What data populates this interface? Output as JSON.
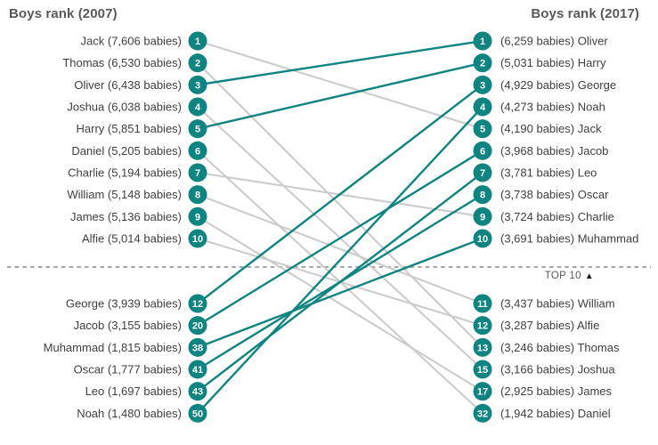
{
  "chart_data": {
    "type": "line",
    "variant": "slopegraph",
    "title_left": "Boys rank (2007)",
    "title_right": "Boys rank (2017)",
    "separator_label": "TOP 10",
    "separator_arrow": "▲",
    "unit": "babies",
    "colors": {
      "rising_line": "#0f8480",
      "falling_line": "#cccccc",
      "node_fill": "#0f8480",
      "node_text": "#ffffff",
      "label_text": "#3f3f3f",
      "header_text": "#595959",
      "separator": "#a6a6a6",
      "arrow": "#1a1a1a"
    },
    "entries": [
      {
        "name": "Jack",
        "rank_2007": 1,
        "babies_2007": 7606,
        "label_2007": "Jack (7,606 babies)",
        "rank_2017": 5,
        "babies_2017": 4190,
        "label_2017": "(4,190 babies) Jack",
        "trend": "down"
      },
      {
        "name": "Thomas",
        "rank_2007": 2,
        "babies_2007": 6530,
        "label_2007": "Thomas (6,530 babies)",
        "rank_2017": 13,
        "babies_2017": 3246,
        "label_2017": "(3,246 babies) Thomas",
        "trend": "down"
      },
      {
        "name": "Oliver",
        "rank_2007": 3,
        "babies_2007": 6438,
        "label_2007": "Oliver (6,438 babies)",
        "rank_2017": 1,
        "babies_2017": 6259,
        "label_2017": "(6,259 babies) Oliver",
        "trend": "up"
      },
      {
        "name": "Joshua",
        "rank_2007": 4,
        "babies_2007": 6038,
        "label_2007": "Joshua (6,038 babies)",
        "rank_2017": 15,
        "babies_2017": 3166,
        "label_2017": "(3,166 babies) Joshua",
        "trend": "down"
      },
      {
        "name": "Harry",
        "rank_2007": 5,
        "babies_2007": 5851,
        "label_2007": "Harry (5,851 babies)",
        "rank_2017": 2,
        "babies_2017": 5031,
        "label_2017": "(5,031 babies) Harry",
        "trend": "up"
      },
      {
        "name": "Daniel",
        "rank_2007": 6,
        "babies_2007": 5205,
        "label_2007": "Daniel (5,205 babies)",
        "rank_2017": 32,
        "babies_2017": 1942,
        "label_2017": "(1,942 babies) Daniel",
        "trend": "down"
      },
      {
        "name": "Charlie",
        "rank_2007": 7,
        "babies_2007": 5194,
        "label_2007": "Charlie (5,194 babies)",
        "rank_2017": 9,
        "babies_2017": 3724,
        "label_2017": "(3,724 babies) Charlie",
        "trend": "down"
      },
      {
        "name": "William",
        "rank_2007": 8,
        "babies_2007": 5148,
        "label_2007": "William (5,148 babies)",
        "rank_2017": 11,
        "babies_2017": 3437,
        "label_2017": "(3,437 babies) William",
        "trend": "down"
      },
      {
        "name": "James",
        "rank_2007": 9,
        "babies_2007": 5136,
        "label_2007": "James (5,136 babies)",
        "rank_2017": 17,
        "babies_2017": 2925,
        "label_2017": "(2,925 babies) James",
        "trend": "down"
      },
      {
        "name": "Alfie",
        "rank_2007": 10,
        "babies_2007": 5014,
        "label_2007": "Alfie (5,014 babies)",
        "rank_2017": 12,
        "babies_2017": 3287,
        "label_2017": "(3,287 babies) Alfie",
        "trend": "down"
      },
      {
        "name": "George",
        "rank_2007": 12,
        "babies_2007": 3939,
        "label_2007": "George (3,939 babies)",
        "rank_2017": 3,
        "babies_2017": 4929,
        "label_2017": "(4,929 babies) George",
        "trend": "up"
      },
      {
        "name": "Jacob",
        "rank_2007": 20,
        "babies_2007": 3155,
        "label_2007": "Jacob (3,155 babies)",
        "rank_2017": 6,
        "babies_2017": 3968,
        "label_2017": "(3,968 babies) Jacob",
        "trend": "up"
      },
      {
        "name": "Muhammad",
        "rank_2007": 38,
        "babies_2007": 1815,
        "label_2007": "Muhammad (1,815 babies)",
        "rank_2017": 10,
        "babies_2017": 3691,
        "label_2017": "(3,691 babies) Muhammad",
        "trend": "up"
      },
      {
        "name": "Oscar",
        "rank_2007": 41,
        "babies_2007": 1777,
        "label_2007": "Oscar (1,777 babies)",
        "rank_2017": 8,
        "babies_2017": 3738,
        "label_2017": "(3,738 babies) Oscar",
        "trend": "up"
      },
      {
        "name": "Leo",
        "rank_2007": 43,
        "babies_2007": 1697,
        "label_2007": "Leo (1,697 babies)",
        "rank_2017": 7,
        "babies_2017": 3781,
        "label_2017": "(3,781 babies) Leo",
        "trend": "up"
      },
      {
        "name": "Noah",
        "rank_2007": 50,
        "babies_2007": 1480,
        "label_2007": "Noah (1,480 babies)",
        "rank_2017": 4,
        "babies_2017": 4273,
        "label_2017": "(4,273 babies) Noah",
        "trend": "up"
      }
    ]
  }
}
